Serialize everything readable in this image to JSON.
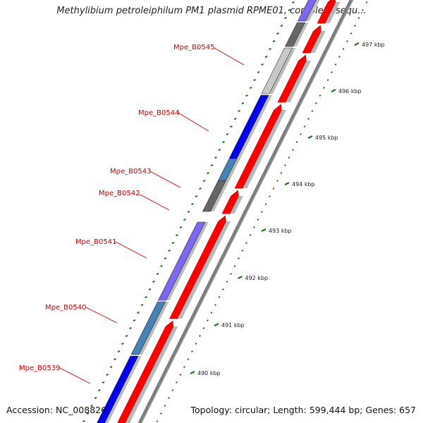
{
  "title": "Methylibium petroleiphilum PM1 plasmid RPME01, complete sequ...",
  "footer": {
    "accession": "Accession: NC_008826",
    "topology": "Topology: circular; Length: 599,444 bp; Genes: 657"
  },
  "colors": {
    "forward_cds": "#ff0000",
    "reverse_blue": "#0000ee",
    "reverse_light_gray": "#c8c8c8",
    "reverse_dark_gray": "#666666",
    "reverse_purple": "#7b68ee",
    "reverse_steel": "#4682b4",
    "backbone": "#7f7f7f",
    "gc_ticks": "#1a7a1a",
    "label": "#cc0000"
  },
  "gene_labels": [
    {
      "text": "Mpe_B0545"
    },
    {
      "text": "Mpe_B0544"
    },
    {
      "text": "Mpe_B0543"
    },
    {
      "text": "Mpe_B0542"
    },
    {
      "text": "Mpe_B0541"
    },
    {
      "text": "Mpe_B0540"
    },
    {
      "text": "Mpe_B0539"
    }
  ],
  "kbp_ticks": [
    {
      "text": "497 kbp"
    },
    {
      "text": "496 kbp"
    },
    {
      "text": "495 kbp"
    },
    {
      "text": "494 kbp"
    },
    {
      "text": "493 kbp"
    },
    {
      "text": "492 kbp"
    },
    {
      "text": "491 kbp"
    },
    {
      "text": "490 kbp"
    }
  ]
}
